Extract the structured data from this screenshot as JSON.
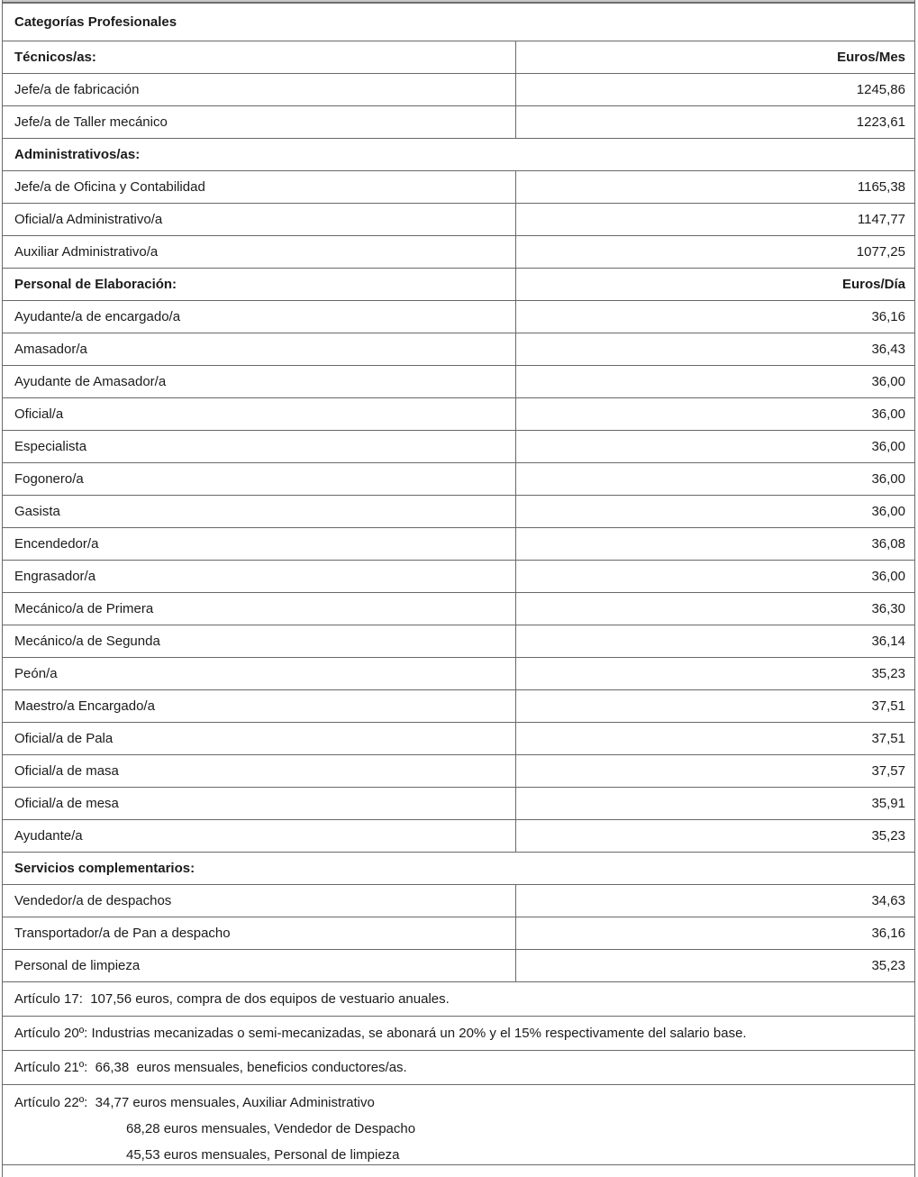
{
  "colors": {
    "border": "#696969",
    "strip_fill": "#c8c8c8",
    "strip_border": "#6e6e6e",
    "text": "#1b1b1b",
    "page_bg": "#ffffff"
  },
  "table": {
    "title": "Categorías Profesionales",
    "rows": [
      {
        "type": "title",
        "label": "Categorías Profesionales"
      },
      {
        "type": "header",
        "label": "Técnicos/as:",
        "value": "Euros/Mes"
      },
      {
        "type": "data",
        "label": "Jefe/a de fabricación",
        "value": "1245,86"
      },
      {
        "type": "data",
        "label": "Jefe/a de Taller mecánico",
        "value": "1223,61"
      },
      {
        "type": "section",
        "label": "Administrativos/as:"
      },
      {
        "type": "data",
        "label": "Jefe/a de Oficina y Contabilidad",
        "value": "1165,38"
      },
      {
        "type": "data",
        "label": "Oficial/a Administrativo/a",
        "value": "1147,77"
      },
      {
        "type": "data",
        "label": "Auxiliar Administrativo/a",
        "value": "1077,25"
      },
      {
        "type": "header",
        "label": "Personal de Elaboración:",
        "value": "Euros/Día"
      },
      {
        "type": "data",
        "label": "Ayudante/a de encargado/a",
        "value": "36,16"
      },
      {
        "type": "data",
        "label": "Amasador/a",
        "value": "36,43"
      },
      {
        "type": "data",
        "label": "Ayudante de Amasador/a",
        "value": "36,00"
      },
      {
        "type": "data",
        "label": "Oficial/a",
        "value": "36,00"
      },
      {
        "type": "data",
        "label": "Especialista",
        "value": "36,00"
      },
      {
        "type": "data",
        "label": "Fogonero/a",
        "value": "36,00"
      },
      {
        "type": "data",
        "label": "Gasista",
        "value": "36,00"
      },
      {
        "type": "data",
        "label": "Encendedor/a",
        "value": "36,08"
      },
      {
        "type": "data",
        "label": "Engrasador/a",
        "value": "36,00"
      },
      {
        "type": "data",
        "label": "Mecánico/a de Primera",
        "value": "36,30"
      },
      {
        "type": "data",
        "label": "Mecánico/a de Segunda",
        "value": "36,14"
      },
      {
        "type": "data",
        "label": "Peón/a",
        "value": "35,23"
      },
      {
        "type": "data",
        "label": "Maestro/a Encargado/a",
        "value": "37,51"
      },
      {
        "type": "data",
        "label": "Oficial/a de Pala",
        "value": "37,51"
      },
      {
        "type": "data",
        "label": "Oficial/a de masa",
        "value": "37,57"
      },
      {
        "type": "data",
        "label": "Oficial/a de mesa",
        "value": "35,91"
      },
      {
        "type": "data",
        "label": "Ayudante/a",
        "value": "35,23"
      },
      {
        "type": "section",
        "label": "Servicios complementarios:"
      },
      {
        "type": "data",
        "label": "Vendedor/a de despachos",
        "value": "34,63"
      },
      {
        "type": "data",
        "label": "Transportador/a de Pan a despacho",
        "value": "36,16"
      },
      {
        "type": "data",
        "label": "Personal de limpieza",
        "value": "35,23"
      },
      {
        "type": "article",
        "text": "Artículo 17:  107,56 euros, compra de dos equipos de vestuario anuales."
      },
      {
        "type": "article",
        "text": "Artículo 20º: Industrias mecanizadas o semi-mecanizadas, se abonará un 20% y el 15% respectivamente del salario base."
      },
      {
        "type": "article",
        "text": "Artículo 21º:  66,38  euros mensuales, beneficios conductores/as."
      },
      {
        "type": "article3",
        "text": "Artículo 22º:  34,77 euros mensuales, Auxiliar Administrativo",
        "line2": "68,28 euros mensuales, Vendedor de Despacho",
        "line3": "45,53 euros mensuales, Personal de limpieza"
      }
    ]
  }
}
